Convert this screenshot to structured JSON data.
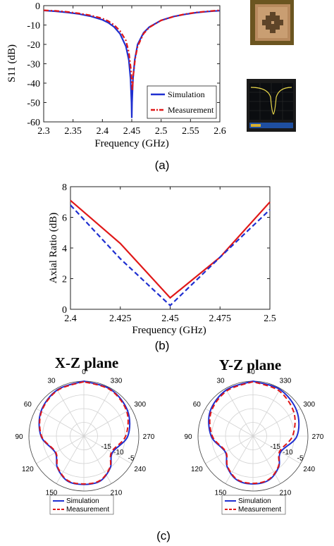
{
  "chart_data": [
    {
      "id": "s11",
      "type": "line",
      "xlabel": "Frequency (GHz)",
      "ylabel": "S11 (dB)",
      "xlim": [
        2.3,
        2.6
      ],
      "ylim": [
        -60,
        0
      ],
      "xticks": [
        "2.3",
        "2.35",
        "2.4",
        "2.45",
        "2.5",
        "2.55",
        "2.6"
      ],
      "xtick_values": [
        2.3,
        2.35,
        2.4,
        2.45,
        2.5,
        2.55,
        2.6
      ],
      "yticks": [
        "0",
        "-10",
        "-20",
        "-30",
        "-40",
        "-50",
        "-60"
      ],
      "ytick_values": [
        0,
        -10,
        -20,
        -30,
        -40,
        -50,
        -60
      ],
      "grid": false,
      "legend_position": "bottom-right",
      "series": [
        {
          "name": "Simulation",
          "color": "#1f2fd0",
          "style": "solid",
          "points": [
            [
              2.3,
              -2.5
            ],
            [
              2.32,
              -2.9
            ],
            [
              2.34,
              -3.5
            ],
            [
              2.36,
              -4.3
            ],
            [
              2.38,
              -5.5
            ],
            [
              2.4,
              -7.3
            ],
            [
              2.41,
              -8.8
            ],
            [
              2.42,
              -11
            ],
            [
              2.43,
              -14.5
            ],
            [
              2.44,
              -21
            ],
            [
              2.445,
              -28
            ],
            [
              2.448,
              -38
            ],
            [
              2.4495,
              -50
            ],
            [
              2.45,
              -58
            ],
            [
              2.4505,
              -50
            ],
            [
              2.452,
              -38
            ],
            [
              2.455,
              -28
            ],
            [
              2.46,
              -20
            ],
            [
              2.47,
              -14
            ],
            [
              2.48,
              -11
            ],
            [
              2.5,
              -7.6
            ],
            [
              2.52,
              -5.7
            ],
            [
              2.54,
              -4.5
            ],
            [
              2.56,
              -3.6
            ],
            [
              2.58,
              -3.0
            ],
            [
              2.6,
              -2.6
            ]
          ]
        },
        {
          "name": "Measurement",
          "color": "#e01818",
          "style": "dash-dot",
          "points": [
            [
              2.3,
              -2.4
            ],
            [
              2.32,
              -2.7
            ],
            [
              2.34,
              -3.2
            ],
            [
              2.36,
              -4.0
            ],
            [
              2.38,
              -5.0
            ],
            [
              2.4,
              -6.6
            ],
            [
              2.41,
              -8.0
            ],
            [
              2.42,
              -10
            ],
            [
              2.43,
              -13
            ],
            [
              2.44,
              -18
            ],
            [
              2.445,
              -24
            ],
            [
              2.449,
              -34
            ],
            [
              2.451,
              -44
            ],
            [
              2.4525,
              -36
            ],
            [
              2.456,
              -27
            ],
            [
              2.46,
              -21
            ],
            [
              2.47,
              -14.5
            ],
            [
              2.48,
              -11.2
            ],
            [
              2.5,
              -7.6
            ],
            [
              2.52,
              -5.8
            ],
            [
              2.54,
              -4.4
            ],
            [
              2.56,
              -3.5
            ],
            [
              2.58,
              -2.9
            ],
            [
              2.6,
              -2.4
            ]
          ]
        }
      ]
    },
    {
      "id": "axial",
      "type": "line",
      "xlabel": "Frequency (GHz)",
      "ylabel": "Axial Ratio (dB)",
      "xlim": [
        2.4,
        2.5
      ],
      "ylim": [
        0,
        8
      ],
      "xticks": [
        "2.4",
        "2.425",
        "2.45",
        "2.475",
        "2.5"
      ],
      "xtick_values": [
        2.4,
        2.425,
        2.45,
        2.475,
        2.5
      ],
      "yticks": [
        "0",
        "2",
        "4",
        "6",
        "8"
      ],
      "ytick_values": [
        0,
        2,
        4,
        6,
        8
      ],
      "grid": false,
      "series": [
        {
          "color": "#e01818",
          "style": "solid",
          "points": [
            [
              2.4,
              7.1
            ],
            [
              2.425,
              4.3
            ],
            [
              2.45,
              0.75
            ],
            [
              2.475,
              3.4
            ],
            [
              2.5,
              7.0
            ]
          ]
        },
        {
          "color": "#1f2fd0",
          "style": "dashed",
          "points": [
            [
              2.4,
              6.8
            ],
            [
              2.425,
              3.3
            ],
            [
              2.45,
              0.25
            ],
            [
              2.475,
              3.4
            ],
            [
              2.5,
              6.5
            ]
          ]
        }
      ]
    },
    {
      "id": "xz",
      "type": "polar",
      "title": "X-Z plane",
      "angle_labels": [
        "0",
        "30",
        "60",
        "90",
        "120",
        "150",
        "180",
        "210",
        "240",
        "270",
        "300",
        "330"
      ],
      "radial_labels": [
        "-15",
        "-10",
        "-5"
      ],
      "legend_position": "bottom-left",
      "series": [
        {
          "name": "Simulation",
          "color": "#1f2fd0",
          "style": "solid",
          "points": [
            [
              0,
              1.0
            ],
            [
              30,
              0.97
            ],
            [
              60,
              0.9
            ],
            [
              90,
              0.78
            ],
            [
              120,
              0.6
            ],
            [
              140,
              0.75
            ],
            [
              160,
              0.87
            ],
            [
              180,
              0.88
            ],
            [
              200,
              0.87
            ],
            [
              220,
              0.75
            ],
            [
              240,
              0.6
            ],
            [
              270,
              0.8
            ],
            [
              300,
              0.92
            ],
            [
              330,
              0.98
            ],
            [
              360,
              1.0
            ]
          ]
        },
        {
          "name": "Measurement",
          "color": "#e01818",
          "style": "dashed",
          "points": [
            [
              0,
              0.99
            ],
            [
              30,
              0.96
            ],
            [
              60,
              0.89
            ],
            [
              90,
              0.77
            ],
            [
              120,
              0.59
            ],
            [
              140,
              0.74
            ],
            [
              160,
              0.86
            ],
            [
              180,
              0.87
            ],
            [
              200,
              0.86
            ],
            [
              220,
              0.74
            ],
            [
              240,
              0.58
            ],
            [
              270,
              0.76
            ],
            [
              300,
              0.9
            ],
            [
              330,
              0.97
            ],
            [
              360,
              0.99
            ]
          ]
        }
      ]
    },
    {
      "id": "yz",
      "type": "polar",
      "title": "Y-Z plane",
      "angle_labels": [
        "0",
        "30",
        "60",
        "90",
        "120",
        "150",
        "180",
        "210",
        "240",
        "270",
        "300",
        "330"
      ],
      "radial_labels": [
        "-15",
        "-10",
        "-5"
      ],
      "legend_position": "bottom-right",
      "series": [
        {
          "name": "Simulation",
          "color": "#1f2fd0",
          "style": "solid",
          "points": [
            [
              0,
              1.0
            ],
            [
              30,
              0.97
            ],
            [
              60,
              0.9
            ],
            [
              90,
              0.76
            ],
            [
              120,
              0.58
            ],
            [
              140,
              0.73
            ],
            [
              160,
              0.85
            ],
            [
              180,
              0.87
            ],
            [
              200,
              0.85
            ],
            [
              220,
              0.73
            ],
            [
              240,
              0.58
            ],
            [
              270,
              0.8
            ],
            [
              300,
              0.92
            ],
            [
              330,
              0.98
            ],
            [
              360,
              1.0
            ]
          ]
        },
        {
          "name": "Measurement",
          "color": "#e01818",
          "style": "dashed",
          "points": [
            [
              0,
              0.99
            ],
            [
              30,
              0.95
            ],
            [
              60,
              0.88
            ],
            [
              90,
              0.74
            ],
            [
              120,
              0.57
            ],
            [
              140,
              0.72
            ],
            [
              160,
              0.84
            ],
            [
              180,
              0.86
            ],
            [
              200,
              0.84
            ],
            [
              220,
              0.72
            ],
            [
              240,
              0.56
            ],
            [
              270,
              0.72
            ],
            [
              300,
              0.86
            ],
            [
              330,
              0.95
            ],
            [
              360,
              0.99
            ]
          ]
        }
      ]
    }
  ],
  "captions": {
    "a": "(a)",
    "b": "(b)",
    "c": "(c)"
  },
  "colors": {
    "simulation": "#1f2fd0",
    "measurement": "#e01818"
  },
  "photos": {
    "antenna_photo": "patch-antenna-photo",
    "analyzer_photo": "network-analyzer-screen-photo"
  }
}
